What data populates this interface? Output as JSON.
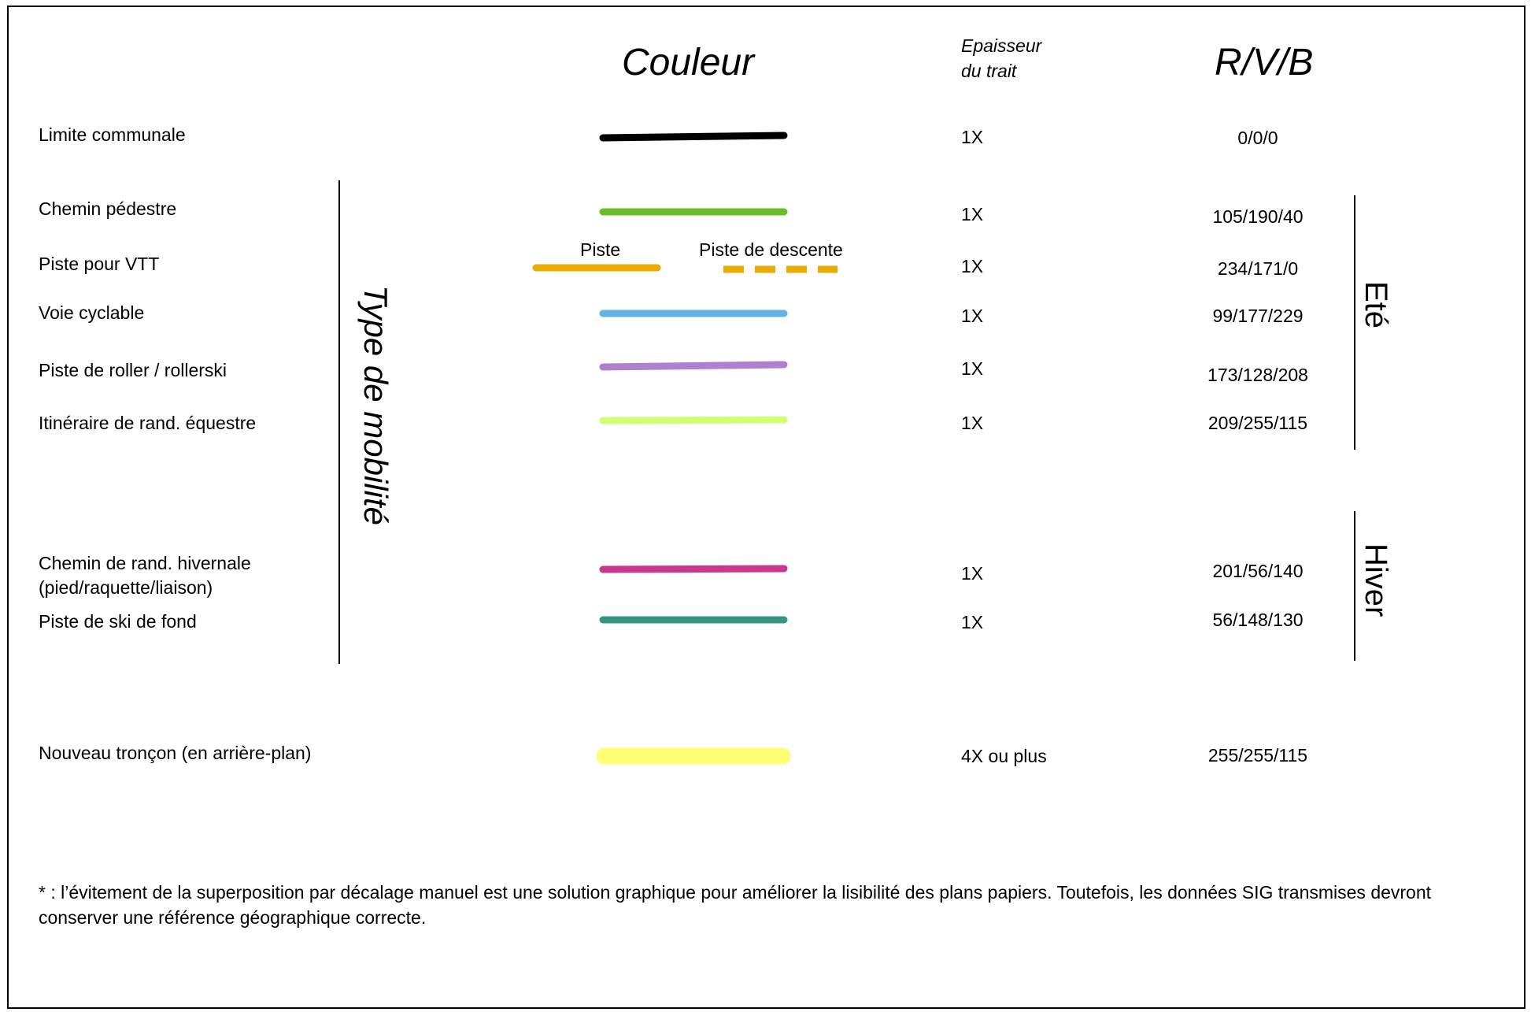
{
  "headers": {
    "couleur": "Couleur",
    "epaisseur_line1": "Epaisseur",
    "epaisseur_line2": "du trait",
    "rvb": "R/V/B"
  },
  "side_labels": {
    "type_mobilite": "Type de mobilité",
    "ete": "Eté",
    "hiver": "Hiver"
  },
  "vtt_sublabels": {
    "piste": "Piste",
    "descente": "Piste de descente"
  },
  "rows": [
    {
      "label": "Limite communale",
      "thickness": "1X",
      "rgb": "0/0/0",
      "color": "#000000"
    },
    {
      "label": "Chemin pédestre",
      "thickness": "1X",
      "rgb": "105/190/40",
      "color": "#69be28"
    },
    {
      "label": "Piste pour VTT",
      "thickness": "1X",
      "rgb": "234/171/0",
      "color": "#eaab00"
    },
    {
      "label": "Voie cyclable",
      "thickness": "1X",
      "rgb": "99/177/229",
      "color": "#63b1e5"
    },
    {
      "label": "Piste de roller / rollerski",
      "thickness": "1X",
      "rgb": "173/128/208",
      "color": "#ad80d0"
    },
    {
      "label": "Itinéraire de rand. équestre",
      "thickness": "1X",
      "rgb": "209/255/115",
      "color": "#d1ff73"
    },
    {
      "label_line1": "Chemin de rand. hivernale",
      "label_line2": "(pied/raquette/liaison)",
      "thickness": "1X",
      "rgb": "201/56/140",
      "color": "#c9388c"
    },
    {
      "label": "Piste de ski de fond",
      "thickness": "1X",
      "rgb": "56/148/130",
      "color": "#389482"
    },
    {
      "label": "Nouveau tronçon (en arrière-plan)",
      "thickness": "4X ou plus",
      "rgb": "255/255/115",
      "color": "#ffff73"
    }
  ],
  "footnote": "* : l’évitement de la superposition par décalage manuel est une solution graphique pour améliorer la lisibilité des plans papiers. Toutefois, les données SIG transmises devront conserver une référence géographique correcte."
}
